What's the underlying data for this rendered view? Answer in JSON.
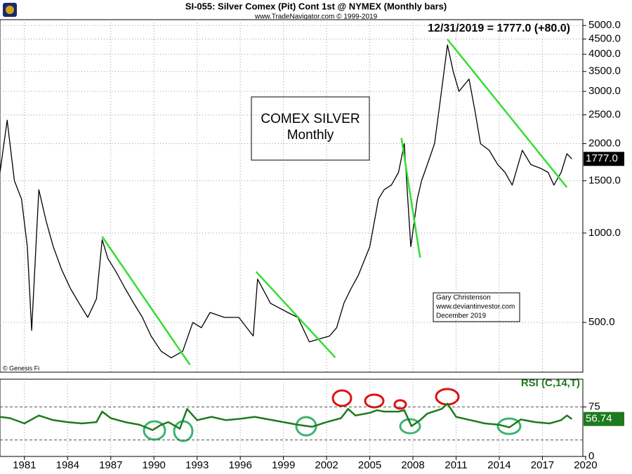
{
  "chart_data": [
    {
      "type": "line",
      "title": "SI-055:  Silver Comex (Pit) Cont 1st @ NYMEX  (Monthly bars)",
      "subtitle": "www.TradeNavigator.com © 1999-2019",
      "headline": "12/31/2019 = 1777.0 (+80.0)",
      "box_text": [
        "COMEX SILVER",
        "Monthly"
      ],
      "credit": [
        "Gary Christenson",
        "www.deviantinvestor.com",
        "December 2019"
      ],
      "copyright": "© Genesis Fi",
      "log_scale": true,
      "grid": true,
      "color": "#000000",
      "xlim": [
        1979.3,
        2020.2
      ],
      "ylim": [
        340,
        5230
      ],
      "yticks": [
        {
          "value": 5000,
          "label": "5000.0"
        },
        {
          "value": 4500,
          "label": "4500.0"
        },
        {
          "value": 4000,
          "label": "4000.0"
        },
        {
          "value": 3500,
          "label": "3500.0"
        },
        {
          "value": 3000,
          "label": "3000.0"
        },
        {
          "value": 2500,
          "label": "2500.0"
        },
        {
          "value": 2000,
          "label": "2000.0"
        },
        {
          "value": 1500,
          "label": "1500.0"
        },
        {
          "value": 1000,
          "label": "1000.0"
        },
        {
          "value": 500,
          "label": "500.0"
        }
      ],
      "x": [
        1979.3,
        1979.8,
        1980.3,
        1980.8,
        1981.2,
        1981.5,
        1982.0,
        1982.5,
        1983.0,
        1983.6,
        1984.2,
        1984.8,
        1985.4,
        1986.0,
        1986.4,
        1986.8,
        1987.3,
        1988.0,
        1988.6,
        1989.2,
        1989.8,
        1990.5,
        1991.2,
        1992.0,
        1992.7,
        1993.3,
        1993.9,
        1994.9,
        1995.9,
        1996.9,
        1997.2,
        1998.1,
        1998.7,
        1999.3,
        2000.0,
        2000.8,
        2001.5,
        2002.2,
        2002.7,
        2003.2,
        2003.7,
        2004.2,
        2005.0,
        2005.6,
        2006.0,
        2006.5,
        2007.0,
        2007.4,
        2007.85,
        2008.3,
        2008.6,
        2009.0,
        2009.5,
        2009.9,
        2010.4,
        2010.8,
        2011.2,
        2011.9,
        2012.3,
        2012.7,
        2013.3,
        2013.9,
        2014.4,
        2014.9,
        2015.6,
        2016.2,
        2016.9,
        2017.4,
        2017.8,
        2018.3,
        2018.7,
        2019.05
      ],
      "values": [
        1600,
        2400,
        1500,
        1300,
        900,
        470,
        1400,
        1100,
        900,
        750,
        650,
        580,
        520,
        600,
        950,
        820,
        750,
        650,
        580,
        520,
        450,
        400,
        380,
        400,
        500,
        480,
        540,
        520,
        520,
        450,
        700,
        580,
        560,
        540,
        520,
        430,
        440,
        450,
        480,
        580,
        650,
        720,
        900,
        1300,
        1400,
        1450,
        1600,
        2000,
        900,
        1300,
        1500,
        1700,
        2000,
        2800,
        4300,
        3500,
        3000,
        3300,
        2600,
        2000,
        1900,
        1700,
        1600,
        1450,
        1900,
        1700,
        1650,
        1600,
        1450,
        1600,
        1850,
        1777
      ],
      "last": {
        "value": 1777,
        "label": "1777.0"
      },
      "trendline_color": "#33dd33",
      "trendlines": [
        {
          "x": [
            1986.4,
            1992.5
          ],
          "y": [
            973,
            360
          ]
        },
        {
          "x": [
            1997.1,
            2002.6
          ],
          "y": [
            741,
            381
          ]
        },
        {
          "x": [
            2007.2,
            2008.5
          ],
          "y": [
            2089,
            826
          ]
        },
        {
          "x": [
            2010.4,
            2018.7
          ],
          "y": [
            4490,
            1425
          ]
        }
      ]
    },
    {
      "type": "line",
      "title": "RSI (C,14,T)",
      "color": "#1e7a1e",
      "xlim": [
        1979.3,
        2020.2
      ],
      "xticks": [
        1981,
        1984,
        1987,
        1990,
        1993,
        1996,
        1999,
        2002,
        2005,
        2008,
        2011,
        2014,
        2017,
        2020
      ],
      "ylim": [
        0,
        117
      ],
      "yticks": [
        75,
        0
      ],
      "levels": [
        75,
        25
      ],
      "x": [
        1979.3,
        1980.0,
        1981.0,
        1982.0,
        1983.0,
        1984.0,
        1985.0,
        1986.0,
        1986.4,
        1987.0,
        1988.0,
        1989.0,
        1989.9,
        1990.5,
        1991.0,
        1991.8,
        1992.3,
        1993.0,
        1994.0,
        1995.0,
        1996.0,
        1997.0,
        1998.0,
        1999.0,
        2000.0,
        2001.0,
        2002.0,
        2003.0,
        2003.5,
        2004.0,
        2005.0,
        2005.5,
        2006.0,
        2007.0,
        2007.4,
        2007.9,
        2008.5,
        2009.0,
        2010.0,
        2010.4,
        2011.0,
        2012.0,
        2013.0,
        2014.0,
        2014.7,
        2015.5,
        2016.5,
        2017.5,
        2018.3,
        2018.7,
        2019.05
      ],
      "values": [
        60,
        58,
        50,
        62,
        55,
        52,
        50,
        52,
        68,
        58,
        52,
        48,
        40,
        48,
        52,
        42,
        72,
        55,
        60,
        55,
        57,
        60,
        56,
        52,
        48,
        45,
        52,
        58,
        72,
        62,
        66,
        70,
        68,
        68,
        70,
        46,
        55,
        65,
        72,
        80,
        60,
        55,
        50,
        48,
        44,
        56,
        52,
        50,
        55,
        62,
        56.74
      ],
      "last": {
        "value": 56.74,
        "label": "56.74"
      }
    }
  ]
}
